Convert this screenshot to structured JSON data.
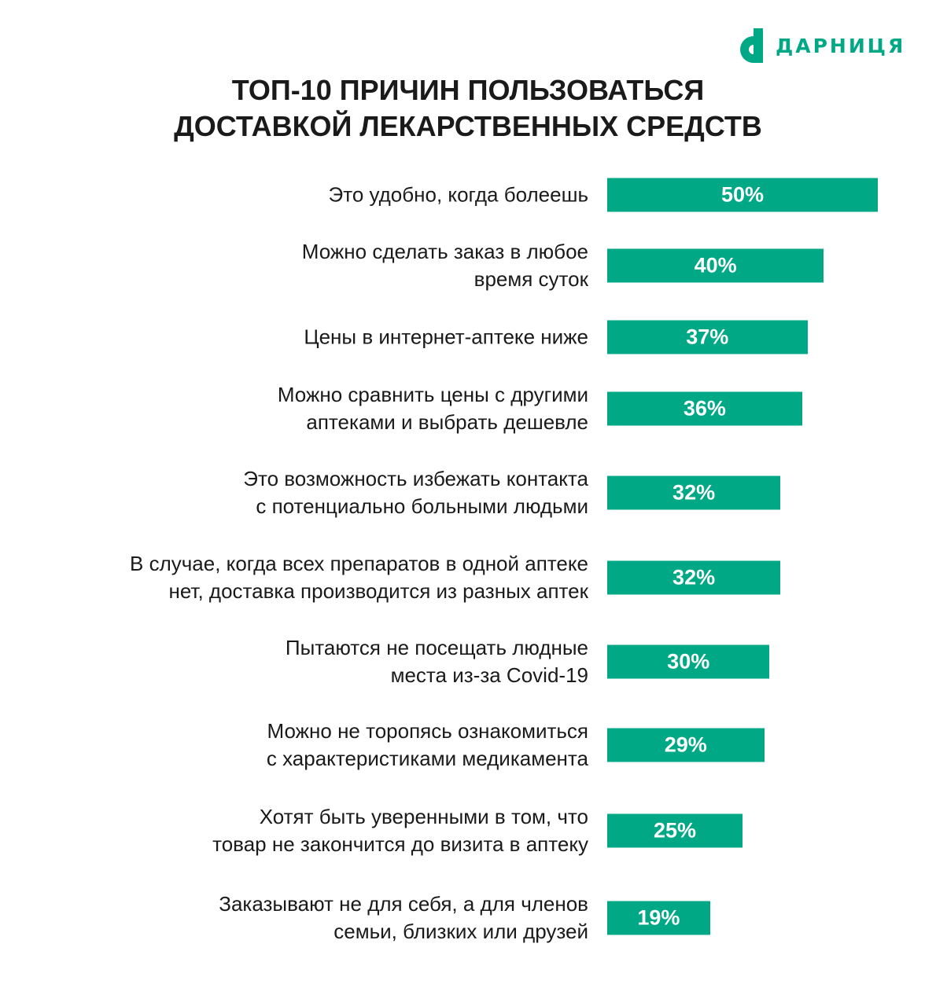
{
  "logo": {
    "text": "ДАРНИЦЯ",
    "color": "#00a886"
  },
  "title_lines": [
    "ТОП-10 ПРИЧИН ПОЛЬЗОВАТЬСЯ",
    "ДОСТАВКОЙ ЛЕКАРСТВЕННЫХ СРЕДСТВ"
  ],
  "chart_data": {
    "type": "bar",
    "orientation": "horizontal",
    "title": "ТОП-10 ПРИЧИН ПОЛЬЗОВАТЬСЯ ДОСТАВКОЙ ЛЕКАРСТВЕННЫХ СРЕДСТВ",
    "categories": [
      "Это удобно, когда болеешь",
      "Можно сделать заказ в любое время суток",
      "Цены в интернет-аптеке ниже",
      "Можно сравнить цены с другими аптеками и выбрать дешевле",
      "Это возможность избежать контакта с потенциально больными людьми",
      "В случае, когда всех препаратов в одной аптеке нет, доставка производится из разных аптек",
      "Пытаются не посещать людные места из-за Covid-19",
      "Можно не торопясь ознакомиться с характеристиками медикамента",
      "Хотят быть уверенными в том, что товар не закончится до визита в аптеку",
      "Заказывают не для себя, а для членов семьи, близких или друзей"
    ],
    "label_lines": [
      [
        "Это удобно, когда болеешь"
      ],
      [
        "Можно сделать заказ в любое",
        "время суток"
      ],
      [
        "Цены в интернет-аптеке ниже"
      ],
      [
        "Можно сравнить цены с другими",
        "аптеками и выбрать дешевле"
      ],
      [
        "Это возможность избежать контакта",
        "с потенциально больными людьми"
      ],
      [
        "В случае, когда всех препаратов в одной аптеке",
        "нет, доставка производится из разных аптек"
      ],
      [
        "Пытаются не посещать людные",
        "места из-за Covid-19"
      ],
      [
        "Можно не торопясь ознакомиться",
        "с характеристиками медикамента"
      ],
      [
        "Хотят быть уверенными в том, что",
        "товар не закончится до визита в аптеку"
      ],
      [
        "Заказывают не для себя, а для членов",
        "семьи, близких или друзей"
      ]
    ],
    "values": [
      50,
      40,
      37,
      36,
      32,
      32,
      30,
      29,
      25,
      19
    ],
    "value_labels": [
      "50%",
      "40%",
      "37%",
      "36%",
      "32%",
      "32%",
      "30%",
      "29%",
      "25%",
      "19%"
    ],
    "unit": "%",
    "bar_color": "#00a886",
    "grid": false,
    "legend": "none"
  }
}
